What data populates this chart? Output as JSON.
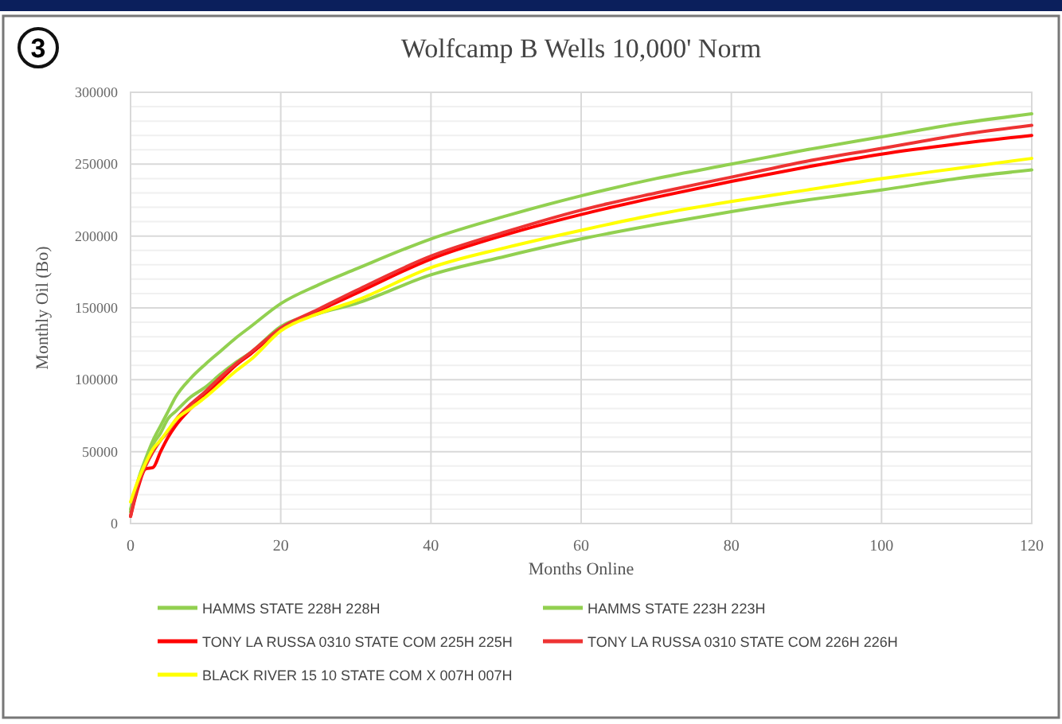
{
  "chart_data": {
    "type": "line",
    "title": "Wolfcamp B Wells 10,000' Norm",
    "xlabel": "Months Online",
    "ylabel": "Monthly Oil (Bo)",
    "annotations": [
      "3"
    ],
    "x": [
      0,
      1,
      2,
      3,
      4,
      5,
      6,
      8,
      10,
      12,
      14,
      16,
      20,
      25,
      30,
      40,
      50,
      60,
      70,
      80,
      90,
      100,
      110,
      120
    ],
    "series": [
      {
        "name": "HAMMS STATE 228H 228H",
        "color": "#92d050",
        "values": [
          8000,
          30000,
          45000,
          58000,
          68000,
          78000,
          88000,
          101000,
          111000,
          120000,
          129000,
          137000,
          153000,
          166000,
          177000,
          198000,
          214000,
          228000,
          240000,
          250000,
          260000,
          269000,
          278000,
          285000
        ]
      },
      {
        "name": "HAMMS STATE 223H 223H",
        "color": "#92d050",
        "values": [
          10000,
          28000,
          42000,
          55000,
          63000,
          73000,
          78000,
          88000,
          95000,
          104000,
          112000,
          119000,
          137000,
          146000,
          153000,
          173000,
          186000,
          198000,
          208000,
          217000,
          225000,
          232000,
          240000,
          246000
        ]
      },
      {
        "name": "TONY LA RUSSA 0310 STATE COM 225H 225H",
        "color": "#ff0000",
        "values": [
          5000,
          25000,
          38000,
          39000,
          50000,
          60000,
          68000,
          80000,
          90000,
          100000,
          110000,
          118000,
          135000,
          148000,
          160000,
          184000,
          201000,
          215000,
          227000,
          238000,
          248000,
          257000,
          264000,
          270000
        ]
      },
      {
        "name": "TONY LA RUSSA 0310 STATE COM 226H 226H",
        "color": "#ee3333",
        "values": [
          5000,
          27000,
          40000,
          50000,
          58000,
          64000,
          72000,
          83000,
          92000,
          102000,
          111000,
          119000,
          136000,
          149000,
          162000,
          186000,
          203000,
          218000,
          230000,
          241000,
          252000,
          261000,
          270000,
          277000
        ]
      },
      {
        "name": "BLACK RIVER 15 10 STATE COM X 007H 007H",
        "color": "#ffff00",
        "values": [
          15000,
          30000,
          42000,
          52000,
          58000,
          65000,
          72000,
          80000,
          88000,
          97000,
          106000,
          114000,
          134000,
          146000,
          155000,
          178000,
          192000,
          204000,
          215000,
          224000,
          232000,
          240000,
          247000,
          254000
        ]
      }
    ],
    "xlim": [
      0,
      120
    ],
    "ylim": [
      0,
      300000
    ],
    "xticks": [
      0,
      20,
      40,
      60,
      80,
      100,
      120
    ],
    "yticks": [
      0,
      50000,
      100000,
      150000,
      200000,
      250000,
      300000
    ],
    "grid": true,
    "legend": "bottom",
    "marker": "none",
    "line_style": "solid"
  }
}
